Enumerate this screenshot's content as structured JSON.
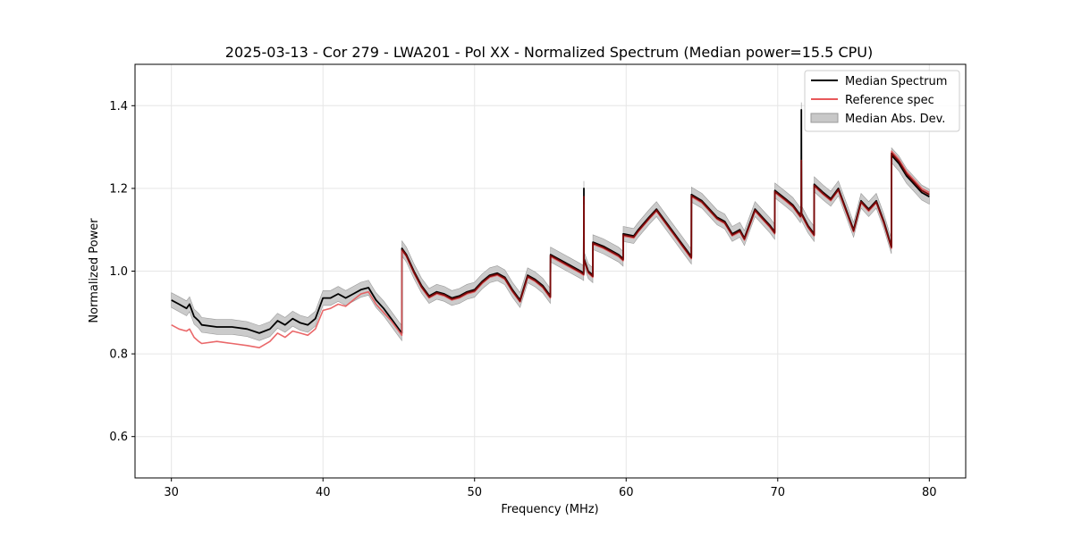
{
  "chart_data": {
    "type": "line",
    "title": "2025-03-13 - Cor 279 - LWA201 - Pol XX - Normalized Spectrum (Median power=15.5 CPU)",
    "xlabel": "Frequency (MHz)",
    "ylabel": "Normalized Power",
    "xlim": [
      27.6,
      82.4
    ],
    "ylim": [
      0.5,
      1.5
    ],
    "xticks": [
      30,
      40,
      50,
      60,
      70,
      80
    ],
    "yticks": [
      0.6,
      0.8,
      1.0,
      1.2,
      1.4
    ],
    "xtick_labels": [
      "30",
      "40",
      "50",
      "60",
      "70",
      "80"
    ],
    "ytick_labels": [
      "0.6",
      "0.8",
      "1.0",
      "1.2",
      "1.4"
    ],
    "grid": true,
    "legend_position": "top-right",
    "legend": [
      "Median Spectrum",
      "Reference spec",
      "Median Abs. Dev."
    ],
    "colors": {
      "median": "#000000",
      "reference": "#e8585a",
      "overlap": "#7a0a0a",
      "band": "#c8c8c8",
      "band_edge": "#9a9a9a",
      "grid": "#e6e6e6"
    },
    "band_halfwidth": 0.018,
    "series": [
      {
        "name": "Median Spectrum",
        "x": [
          30.0,
          30.5,
          31.0,
          31.2,
          31.5,
          31.8,
          32.0,
          33.0,
          34.0,
          35.0,
          35.8,
          36.5,
          37.0,
          37.5,
          38.0,
          38.5,
          39.0,
          39.5,
          40.0,
          40.5,
          41.0,
          41.5,
          42.0,
          42.5,
          43.0,
          43.5,
          44.0,
          44.5,
          45.0,
          45.2,
          45.21,
          45.5,
          46.0,
          46.5,
          47.0,
          47.5,
          48.0,
          48.5,
          49.0,
          49.5,
          50.0,
          50.5,
          51.0,
          51.5,
          52.0,
          52.5,
          53.0,
          53.5,
          54.0,
          54.5,
          55.0,
          55.01,
          56.0,
          57.0,
          57.2,
          57.21,
          57.22,
          57.5,
          57.8,
          57.81,
          58.5,
          59.5,
          59.8,
          59.81,
          60.5,
          60.8,
          61.5,
          62.0,
          62.5,
          63.0,
          63.5,
          64.0,
          64.3,
          64.31,
          65.0,
          66.0,
          66.5,
          67.0,
          67.5,
          67.8,
          68.5,
          69.0,
          69.5,
          69.8,
          69.81,
          70.5,
          71.0,
          71.5,
          71.55,
          71.56,
          71.57,
          72.0,
          72.4,
          72.41,
          73.0,
          73.5,
          74.0,
          74.5,
          75.0,
          75.5,
          76.0,
          76.5,
          77.0,
          77.5,
          77.51,
          78.0,
          78.5,
          79.0,
          79.5,
          80.0
        ],
        "y": [
          0.93,
          0.92,
          0.91,
          0.92,
          0.89,
          0.88,
          0.87,
          0.865,
          0.865,
          0.86,
          0.85,
          0.86,
          0.88,
          0.87,
          0.885,
          0.875,
          0.87,
          0.885,
          0.935,
          0.935,
          0.945,
          0.935,
          0.945,
          0.955,
          0.96,
          0.93,
          0.91,
          0.885,
          0.86,
          0.85,
          1.055,
          1.04,
          1.0,
          0.965,
          0.94,
          0.95,
          0.945,
          0.935,
          0.94,
          0.95,
          0.955,
          0.975,
          0.99,
          0.995,
          0.985,
          0.955,
          0.93,
          0.99,
          0.98,
          0.965,
          0.94,
          1.04,
          1.02,
          1.0,
          0.995,
          1.2,
          1.03,
          1.0,
          0.99,
          1.07,
          1.06,
          1.04,
          1.03,
          1.09,
          1.085,
          1.1,
          1.13,
          1.15,
          1.125,
          1.1,
          1.075,
          1.05,
          1.035,
          1.185,
          1.17,
          1.13,
          1.12,
          1.09,
          1.1,
          1.08,
          1.15,
          1.13,
          1.11,
          1.095,
          1.195,
          1.175,
          1.16,
          1.135,
          1.15,
          1.39,
          1.14,
          1.11,
          1.09,
          1.21,
          1.19,
          1.175,
          1.2,
          1.15,
          1.1,
          1.17,
          1.15,
          1.17,
          1.12,
          1.06,
          1.28,
          1.26,
          1.23,
          1.21,
          1.19,
          1.18
        ]
      },
      {
        "name": "Reference spec",
        "x": [
          30.0,
          30.5,
          31.0,
          31.2,
          31.5,
          31.8,
          32.0,
          33.0,
          34.0,
          35.0,
          35.8,
          36.5,
          37.0,
          37.5,
          38.0,
          38.5,
          39.0,
          39.5,
          40.0,
          40.5,
          41.0,
          41.5,
          42.0,
          42.5,
          43.0,
          43.5,
          44.0,
          44.5,
          45.0,
          45.2,
          45.21,
          45.5,
          46.0,
          46.5,
          47.0,
          47.5,
          48.0,
          48.5,
          49.0,
          49.5,
          50.0,
          50.5,
          51.0,
          51.5,
          52.0,
          52.5,
          53.0,
          53.5,
          54.0,
          54.5,
          55.0,
          55.01,
          56.0,
          57.0,
          57.2,
          57.21,
          57.22,
          57.5,
          57.8,
          57.81,
          58.5,
          59.5,
          59.8,
          59.81,
          60.5,
          60.8,
          61.5,
          62.0,
          62.5,
          63.0,
          63.5,
          64.0,
          64.3,
          64.31,
          65.0,
          66.0,
          66.5,
          67.0,
          67.5,
          67.8,
          68.5,
          69.0,
          69.5,
          69.8,
          69.81,
          70.5,
          71.0,
          71.5,
          71.55,
          71.56,
          71.57,
          72.0,
          72.4,
          72.41,
          73.0,
          73.5,
          74.0,
          74.5,
          75.0,
          75.5,
          76.0,
          76.5,
          77.0,
          77.5,
          77.51,
          78.0,
          78.5,
          79.0,
          79.5,
          80.0
        ],
        "y": [
          0.87,
          0.86,
          0.855,
          0.86,
          0.84,
          0.83,
          0.825,
          0.83,
          0.825,
          0.82,
          0.815,
          0.83,
          0.85,
          0.84,
          0.855,
          0.85,
          0.845,
          0.86,
          0.905,
          0.91,
          0.92,
          0.915,
          0.93,
          0.945,
          0.95,
          0.92,
          0.9,
          0.88,
          0.855,
          0.845,
          1.05,
          1.035,
          0.995,
          0.96,
          0.935,
          0.945,
          0.94,
          0.93,
          0.935,
          0.945,
          0.95,
          0.97,
          0.985,
          0.99,
          0.98,
          0.95,
          0.925,
          0.985,
          0.975,
          0.96,
          0.935,
          1.035,
          1.015,
          0.995,
          0.99,
          1.16,
          1.025,
          0.995,
          0.985,
          1.065,
          1.055,
          1.035,
          1.025,
          1.085,
          1.08,
          1.095,
          1.125,
          1.145,
          1.12,
          1.095,
          1.07,
          1.045,
          1.03,
          1.18,
          1.165,
          1.125,
          1.115,
          1.085,
          1.095,
          1.075,
          1.145,
          1.125,
          1.105,
          1.09,
          1.19,
          1.17,
          1.155,
          1.13,
          1.145,
          1.145,
          1.135,
          1.105,
          1.085,
          1.205,
          1.185,
          1.17,
          1.195,
          1.145,
          1.095,
          1.165,
          1.145,
          1.165,
          1.115,
          1.055,
          1.29,
          1.27,
          1.24,
          1.22,
          1.2,
          1.19
        ]
      }
    ]
  }
}
